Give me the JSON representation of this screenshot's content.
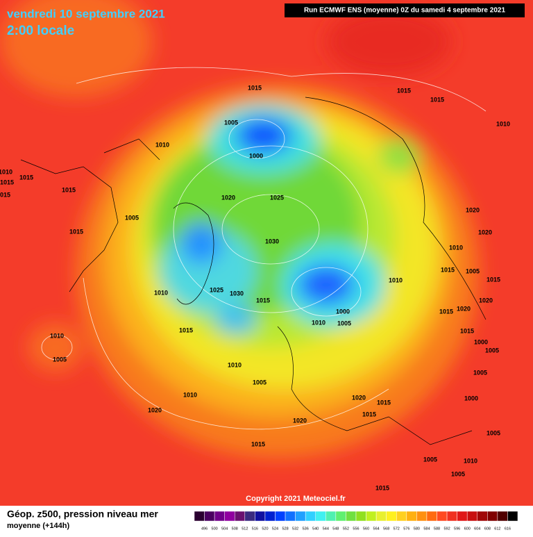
{
  "header": {
    "date": "vendredi 10 septembre 2021",
    "time": "2:00 locale",
    "run": "Run ECMWF ENS (moyenne) 0Z du samedi 4 septembre 2021"
  },
  "footer": {
    "title": "Géop. z500, pression niveau mer",
    "subtitle": "moyenne  (+144h)",
    "copyright": "Copyright 2021 Meteociel.fr"
  },
  "legend": {
    "levels": [
      496,
      500,
      504,
      508,
      512,
      516,
      520,
      524,
      528,
      532,
      536,
      540,
      544,
      548,
      552,
      556,
      560,
      564,
      568,
      572,
      576,
      580,
      584,
      588,
      592,
      596,
      600,
      604,
      608,
      612,
      616
    ],
    "colors": [
      "#2a0030",
      "#4a0060",
      "#70008a",
      "#9000a0",
      "#6a1070",
      "#3a2a80",
      "#1010a0",
      "#0020d0",
      "#0040ff",
      "#1070ff",
      "#20a0ff",
      "#30d0ff",
      "#40f0f0",
      "#50f0b0",
      "#60f070",
      "#70e040",
      "#90e020",
      "#c0f020",
      "#e8f030",
      "#fff020",
      "#ffd020",
      "#ffb010",
      "#ff9010",
      "#ff6a10",
      "#ff4a20",
      "#f03020",
      "#e01818",
      "#c81010",
      "#a00808",
      "#800000",
      "#500000",
      "#000000"
    ]
  },
  "isobars": [
    1015,
    1015,
    1015,
    1005,
    1000,
    1010,
    1010,
    1010,
    1015,
    1015,
    1015,
    1015,
    1020,
    1025,
    1005,
    1015,
    1030,
    1020,
    1020,
    1010,
    1015,
    1005,
    1010,
    1010,
    1025,
    1030,
    1015,
    1000,
    1010,
    1005,
    1015,
    1020,
    1015,
    1015,
    1010,
    1005,
    1010,
    1005,
    1010,
    1000,
    1005,
    1005,
    1020,
    1015,
    1000,
    1015,
    1020,
    1020,
    1005,
    1015,
    1005,
    1010,
    1005,
    1015,
    1015,
    1020
  ]
}
